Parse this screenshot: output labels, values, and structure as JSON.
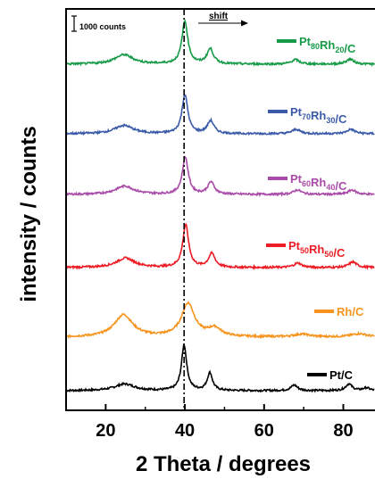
{
  "chart_data": {
    "type": "line",
    "xlabel": "2 Theta / degrees",
    "ylabel": "intensity / counts",
    "xlim": [
      10,
      88
    ],
    "xticks": [
      20,
      40,
      60,
      80
    ],
    "scale_bar_label": "1000 counts",
    "shift_label": "shift",
    "reference_line_x": 39.8,
    "series": [
      {
        "name": "Pt/C",
        "color": "#000000",
        "label_parts": [
          {
            "t": "Pt/C",
            "sub": false
          }
        ],
        "peaks": [
          [
            24.8,
            0.12,
            3.0
          ],
          [
            39.8,
            0.82,
            0.8
          ],
          [
            46.3,
            0.32,
            0.8
          ],
          [
            67.6,
            0.1,
            1.0
          ],
          [
            81.4,
            0.12,
            1.0
          ],
          [
            85.8,
            0.05,
            1.0
          ]
        ],
        "baseline": 0.0
      },
      {
        "name": "Rh/C",
        "color": "#f7941d",
        "label_parts": [
          {
            "t": "Rh/C",
            "sub": false
          }
        ],
        "peaks": [
          [
            24.5,
            0.4,
            2.8
          ],
          [
            40.8,
            0.6,
            2.0
          ],
          [
            47.5,
            0.15,
            2.0
          ],
          [
            69.5,
            0.05,
            2.5
          ],
          [
            84.0,
            0.06,
            2.5
          ]
        ],
        "baseline": 0.0
      },
      {
        "name": "Pt50Rh50/C",
        "color": "#ed1c24",
        "label_parts": [
          {
            "t": "Pt",
            "sub": false
          },
          {
            "t": "50",
            "sub": true
          },
          {
            "t": "Rh",
            "sub": false
          },
          {
            "t": "50",
            "sub": true
          },
          {
            "t": "/C",
            "sub": false
          }
        ],
        "peaks": [
          [
            25.0,
            0.17,
            2.8
          ],
          [
            40.2,
            0.77,
            0.9
          ],
          [
            46.8,
            0.25,
            1.0
          ],
          [
            68.5,
            0.08,
            1.2
          ],
          [
            82.4,
            0.1,
            1.2
          ]
        ],
        "baseline": 0.0
      },
      {
        "name": "Pt60Rh40/C",
        "color": "#a94ba8",
        "label_parts": [
          {
            "t": "Pt",
            "sub": false
          },
          {
            "t": "60",
            "sub": true
          },
          {
            "t": "Rh",
            "sub": false
          },
          {
            "t": "40",
            "sub": true
          },
          {
            "t": "/C",
            "sub": false
          }
        ],
        "peaks": [
          [
            24.8,
            0.15,
            2.8
          ],
          [
            40.1,
            0.67,
            0.9
          ],
          [
            46.6,
            0.22,
            1.0
          ],
          [
            68.4,
            0.08,
            1.2
          ],
          [
            82.2,
            0.08,
            1.2
          ]
        ],
        "baseline": 0.0
      },
      {
        "name": "Pt70Rh30/C",
        "color": "#3b5ba8",
        "label_parts": [
          {
            "t": "Pt",
            "sub": false
          },
          {
            "t": "70",
            "sub": true
          },
          {
            "t": "Rh",
            "sub": false
          },
          {
            "t": "30",
            "sub": true
          },
          {
            "t": "/C",
            "sub": false
          }
        ],
        "peaks": [
          [
            24.6,
            0.15,
            2.8
          ],
          [
            40.0,
            0.7,
            0.9
          ],
          [
            46.5,
            0.23,
            1.0
          ],
          [
            68.1,
            0.08,
            1.2
          ],
          [
            81.9,
            0.08,
            1.2
          ]
        ],
        "baseline": 0.0
      },
      {
        "name": "Pt80Rh20/C",
        "color": "#179b48",
        "label_parts": [
          {
            "t": "Pt",
            "sub": false
          },
          {
            "t": "80",
            "sub": true
          },
          {
            "t": "Rh",
            "sub": false
          },
          {
            "t": "20",
            "sub": true
          },
          {
            "t": "/C",
            "sub": false
          }
        ],
        "peaks": [
          [
            24.6,
            0.17,
            2.8
          ],
          [
            40.0,
            0.77,
            0.9
          ],
          [
            46.4,
            0.27,
            1.0
          ],
          [
            67.9,
            0.08,
            1.2
          ],
          [
            81.7,
            0.09,
            1.2
          ]
        ],
        "baseline": 0.0
      }
    ]
  }
}
